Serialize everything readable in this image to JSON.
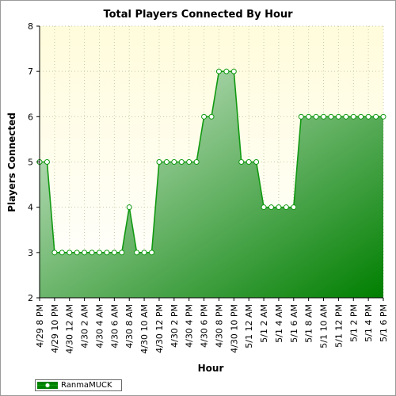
{
  "chart_data": {
    "type": "area",
    "title": "Total Players Connected By Hour",
    "xlabel": "Hour",
    "ylabel": "Players Connected",
    "ylim": [
      2,
      8
    ],
    "yticks": [
      "2",
      "3",
      "4",
      "5",
      "6",
      "7",
      "8"
    ],
    "x": [
      "4/29 8 PM",
      "4/29 9 PM",
      "4/29 10 PM",
      "4/29 11 PM",
      "4/30 12 AM",
      "4/30 1 AM",
      "4/30 2 AM",
      "4/30 3 AM",
      "4/30 4 AM",
      "4/30 5 AM",
      "4/30 6 AM",
      "4/30 7 AM",
      "4/30 8 AM",
      "4/30 9 AM",
      "4/30 10 AM",
      "4/30 11 AM",
      "4/30 12 PM",
      "4/30 1 PM",
      "4/30 2 PM",
      "4/30 3 PM",
      "4/30 4 PM",
      "4/30 5 PM",
      "4/30 6 PM",
      "4/30 7 PM",
      "4/30 8 PM",
      "4/30 9 PM",
      "4/30 10 PM",
      "4/30 11 PM",
      "5/1 12 AM",
      "5/1 1 AM",
      "5/1 2 AM",
      "5/1 3 AM",
      "5/1 4 AM",
      "5/1 5 AM",
      "5/1 6 AM",
      "5/1 7 AM",
      "5/1 8 AM",
      "5/1 9 AM",
      "5/1 10 AM",
      "5/1 11 AM",
      "5/1 12 PM",
      "5/1 1 PM",
      "5/1 2 PM",
      "5/1 3 PM",
      "5/1 4 PM",
      "5/1 5 PM",
      "5/1 6 PM"
    ],
    "xtick_labels": [
      "4/29 8 PM",
      "4/29 10 PM",
      "4/30 12 AM",
      "4/30 2 AM",
      "4/30 4 AM",
      "4/30 6 AM",
      "4/30 8 AM",
      "4/30 10 AM",
      "4/30 12 PM",
      "4/30 2 PM",
      "4/30 4 PM",
      "4/30 6 PM",
      "4/30 8 PM",
      "4/30 10 PM",
      "5/1 12 AM",
      "5/1 2 AM",
      "5/1 4 AM",
      "5/1 6 AM",
      "5/1 8 AM",
      "5/1 10 AM",
      "5/1 12 PM",
      "5/1 2 PM",
      "5/1 4 PM",
      "5/1 6 PM"
    ],
    "series": [
      {
        "name": "RanmaMUCK",
        "values": [
          5,
          5,
          3,
          3,
          3,
          3,
          3,
          3,
          3,
          3,
          3,
          3,
          4,
          3,
          3,
          3,
          5,
          5,
          5,
          5,
          5,
          5,
          6,
          6,
          7,
          7,
          7,
          5,
          5,
          5,
          4,
          4,
          4,
          4,
          4,
          6,
          6,
          6,
          6,
          6,
          6,
          6,
          6,
          6,
          6,
          6,
          6
        ]
      }
    ],
    "grid": true,
    "legend": "bottom-left",
    "colors": {
      "plot_bg_top": "#fffcdc",
      "plot_bg_bottom": "#ffffff",
      "area_light": "#d8ecd8",
      "area_dark": "#007f00",
      "line": "#119911",
      "marker_fill": "#ffffff",
      "grid": "#c8c8a8",
      "axis": "#000000"
    }
  }
}
